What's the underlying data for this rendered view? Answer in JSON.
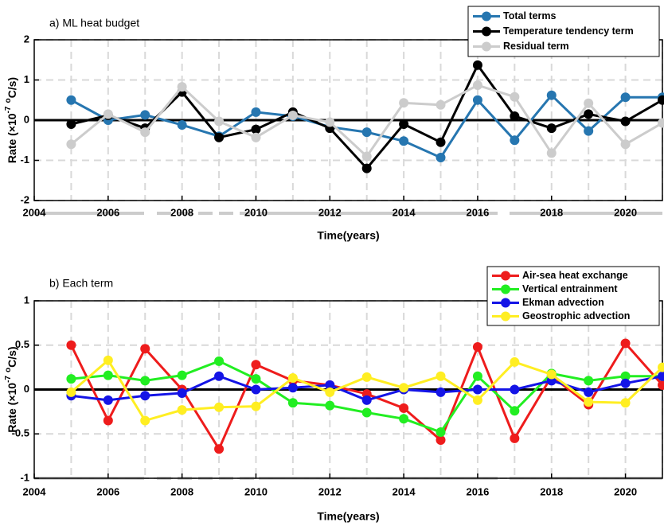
{
  "chart_data": [
    {
      "type": "line",
      "title": "a) ML heat budget",
      "xlabel": "Time(years)",
      "ylabel": [
        {
          "text": "Rate (×10",
          "sup": false
        },
        {
          "text": "-7",
          "sup": true
        },
        {
          "text": "o",
          "sup": true
        },
        {
          "text": "C/s)",
          "sup": false
        }
      ],
      "x": [
        2005,
        2006,
        2007,
        2008,
        2009,
        2010,
        2011,
        2012,
        2013,
        2014,
        2015,
        2016,
        2017,
        2018,
        2019,
        2020,
        2021
      ],
      "series": [
        {
          "name": "Total terms",
          "color": "#2676b0",
          "values": [
            0.5,
            0.0,
            0.13,
            -0.12,
            -0.4,
            0.2,
            0.1,
            -0.17,
            -0.3,
            -0.52,
            -0.93,
            0.5,
            -0.5,
            0.62,
            -0.27,
            0.57,
            0.57
          ]
        },
        {
          "name": "Temperature tendency term",
          "color": "#000000",
          "values": [
            -0.1,
            0.12,
            -0.2,
            0.7,
            -0.43,
            -0.23,
            0.2,
            -0.2,
            -1.2,
            -0.1,
            -0.55,
            1.37,
            0.1,
            -0.2,
            0.15,
            -0.03,
            0.5
          ]
        },
        {
          "name": "Residual term",
          "color": "#cccccc",
          "values": [
            -0.6,
            0.15,
            -0.3,
            0.83,
            -0.03,
            -0.43,
            0.12,
            -0.05,
            -0.9,
            0.43,
            0.38,
            0.87,
            0.58,
            -0.82,
            0.42,
            -0.6,
            -0.07
          ]
        }
      ],
      "xlim": [
        2004,
        2021
      ],
      "xticks": [
        2004,
        2006,
        2008,
        2010,
        2012,
        2014,
        2016,
        2018,
        2020
      ],
      "ylim": [
        -2,
        2
      ],
      "yticks": [
        -2,
        -1,
        0,
        1,
        2
      ],
      "grid": true,
      "legend": "upper right"
    },
    {
      "type": "line",
      "title": "b) Each term",
      "xlabel": "Time(years)",
      "ylabel": [
        {
          "text": "Rate (×10",
          "sup": false
        },
        {
          "text": "-7",
          "sup": true
        },
        {
          "text": "o",
          "sup": true
        },
        {
          "text": "C/s)",
          "sup": false
        }
      ],
      "x": [
        2005,
        2006,
        2007,
        2008,
        2009,
        2010,
        2011,
        2012,
        2013,
        2014,
        2015,
        2016,
        2017,
        2018,
        2019,
        2020,
        2021
      ],
      "series": [
        {
          "name": "Air-sea heat exchange",
          "color": "#ee1c1c",
          "values": [
            0.5,
            -0.35,
            0.46,
            0.0,
            -0.67,
            0.28,
            0.1,
            0.05,
            -0.05,
            -0.21,
            -0.57,
            0.48,
            -0.55,
            0.15,
            -0.17,
            0.52,
            0.05
          ]
        },
        {
          "name": "Vertical entrainment",
          "color": "#22ee22",
          "values": [
            0.12,
            0.16,
            0.1,
            0.16,
            0.32,
            0.12,
            -0.15,
            -0.18,
            -0.26,
            -0.33,
            -0.48,
            0.15,
            -0.24,
            0.18,
            0.1,
            0.15,
            0.15
          ]
        },
        {
          "name": "Ekman advection",
          "color": "#1414e6",
          "values": [
            -0.07,
            -0.12,
            -0.07,
            -0.04,
            0.15,
            0.0,
            0.02,
            0.05,
            -0.12,
            0.0,
            -0.03,
            0.0,
            0.0,
            0.1,
            -0.03,
            0.07,
            0.15
          ]
        },
        {
          "name": "Geostrophic advection",
          "color": "#ffee22",
          "values": [
            -0.03,
            0.33,
            -0.35,
            -0.23,
            -0.2,
            -0.19,
            0.13,
            -0.03,
            0.14,
            0.02,
            0.15,
            -0.12,
            0.31,
            0.17,
            -0.14,
            -0.15,
            0.25
          ]
        }
      ],
      "xlim": [
        2004,
        2021
      ],
      "xticks": [
        2004,
        2006,
        2008,
        2010,
        2012,
        2014,
        2016,
        2018,
        2020
      ],
      "ylim": [
        -1,
        1
      ],
      "yticks": [
        -1,
        -0.5,
        0,
        0.5,
        1
      ],
      "grid": true,
      "legend": "upper right"
    }
  ]
}
